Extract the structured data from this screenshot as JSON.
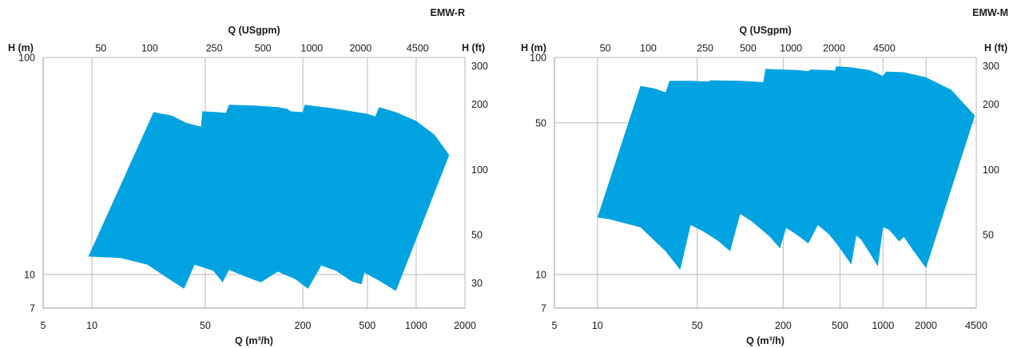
{
  "chart_data": [
    {
      "type": "area",
      "title": "EMW-R",
      "fill_color": "#00a3e0",
      "xlabel": "Q (m³/h)",
      "x2label": "Q (USgpm)",
      "ylabel": "H (m)",
      "y2label": "H (ft)",
      "xscale": "log",
      "yscale": "log",
      "xlim": [
        5,
        2000
      ],
      "ylim": [
        7,
        100
      ],
      "xticks": [
        5,
        10,
        50,
        200,
        500,
        1000,
        2000
      ],
      "yticks": [
        7,
        10,
        100
      ],
      "x2ticks": [
        50,
        100,
        250,
        500,
        1000,
        2000,
        4500
      ],
      "y2ticks": [
        30,
        50,
        100,
        200,
        300
      ],
      "outline": [
        [
          9.5,
          12.1
        ],
        [
          24,
          56
        ],
        [
          31,
          54
        ],
        [
          38,
          50
        ],
        [
          47,
          48
        ],
        [
          48,
          56.5
        ],
        [
          60,
          56
        ],
        [
          67,
          55.5
        ],
        [
          70,
          60.5
        ],
        [
          100,
          60
        ],
        [
          140,
          59
        ],
        [
          160,
          58
        ],
        [
          168,
          56.5
        ],
        [
          200,
          56
        ],
        [
          205,
          60.5
        ],
        [
          320,
          58
        ],
        [
          500,
          55
        ],
        [
          560,
          53.5
        ],
        [
          590,
          59
        ],
        [
          750,
          56
        ],
        [
          1000,
          51
        ],
        [
          1300,
          44
        ],
        [
          1600,
          35.5
        ],
        [
          750,
          8.4
        ],
        [
          600,
          9.3
        ],
        [
          480,
          10.2
        ],
        [
          460,
          9.0
        ],
        [
          400,
          9.3
        ],
        [
          320,
          10.4
        ],
        [
          260,
          11.0
        ],
        [
          215,
          8.6
        ],
        [
          180,
          9.5
        ],
        [
          140,
          10.3
        ],
        [
          110,
          9.2
        ],
        [
          85,
          9.9
        ],
        [
          70,
          10.5
        ],
        [
          64,
          9.2
        ],
        [
          56,
          10.4
        ],
        [
          43,
          11.1
        ],
        [
          37,
          8.6
        ],
        [
          30,
          9.5
        ],
        [
          22,
          11.1
        ],
        [
          15,
          11.9
        ]
      ]
    },
    {
      "type": "area",
      "title": "EMW-M",
      "fill_color": "#00a3e0",
      "xlabel": "Q (m³/h)",
      "x2label": "Q (USgpm)",
      "ylabel": "H (m)",
      "y2label": "H (ft)",
      "xscale": "log",
      "yscale": "log",
      "xlim": [
        5,
        4500
      ],
      "ylim": [
        7,
        100
      ],
      "xticks": [
        5,
        10,
        50,
        200,
        500,
        1000,
        2000,
        4500
      ],
      "yticks": [
        7,
        10,
        50,
        100
      ],
      "x2ticks": [
        50,
        100,
        250,
        500,
        1000,
        2000,
        4500
      ],
      "y2ticks": [
        50,
        100,
        200,
        300
      ],
      "outline": [
        [
          10,
          18.3
        ],
        [
          20,
          74
        ],
        [
          25,
          72
        ],
        [
          30,
          69
        ],
        [
          32,
          78
        ],
        [
          45,
          78
        ],
        [
          60,
          77.5
        ],
        [
          62,
          78.5
        ],
        [
          100,
          78
        ],
        [
          145,
          77
        ],
        [
          150,
          88.5
        ],
        [
          250,
          87.5
        ],
        [
          300,
          86.5
        ],
        [
          310,
          88
        ],
        [
          400,
          87.5
        ],
        [
          460,
          87
        ],
        [
          470,
          91
        ],
        [
          600,
          90
        ],
        [
          800,
          87.5
        ],
        [
          900,
          85
        ],
        [
          1000,
          82
        ],
        [
          1050,
          86
        ],
        [
          1400,
          85.5
        ],
        [
          2000,
          81
        ],
        [
          3000,
          71
        ],
        [
          4400,
          54
        ],
        [
          2000,
          10.7
        ],
        [
          1600,
          13.1
        ],
        [
          1400,
          14.9
        ],
        [
          1300,
          14.2
        ],
        [
          1100,
          16.1
        ],
        [
          1000,
          16.5
        ],
        [
          920,
          10.9
        ],
        [
          800,
          12.7
        ],
        [
          700,
          14.5
        ],
        [
          650,
          15.1
        ],
        [
          600,
          11.1
        ],
        [
          500,
          13.2
        ],
        [
          420,
          15.3
        ],
        [
          350,
          16.9
        ],
        [
          300,
          13.9
        ],
        [
          250,
          15.2
        ],
        [
          210,
          16.4
        ],
        [
          190,
          13.2
        ],
        [
          160,
          15.0
        ],
        [
          120,
          17.6
        ],
        [
          100,
          19.0
        ],
        [
          85,
          12.8
        ],
        [
          70,
          14.3
        ],
        [
          55,
          15.8
        ],
        [
          45,
          16.9
        ],
        [
          38,
          10.5
        ],
        [
          30,
          12.8
        ],
        [
          20,
          16.5
        ],
        [
          12,
          18.0
        ]
      ]
    }
  ]
}
